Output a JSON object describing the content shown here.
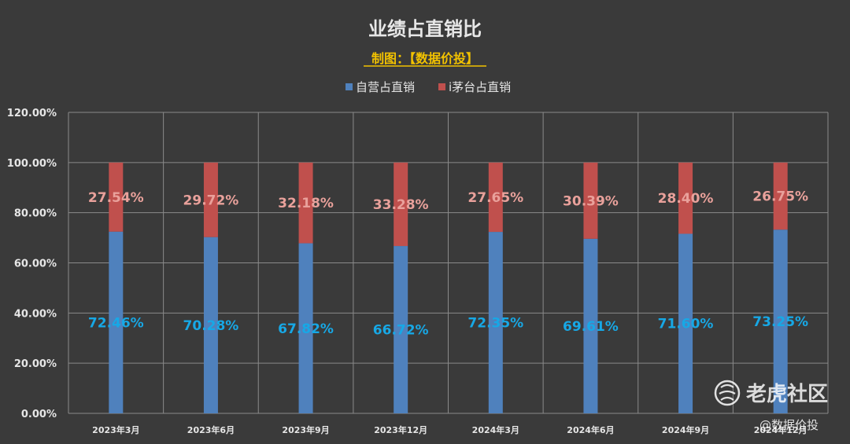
{
  "chart_data": {
    "type": "bar",
    "stacked": true,
    "title": "业绩占直销比",
    "subtitle": "制图：【数据价投】",
    "categories": [
      "2023年3月",
      "2023年6月",
      "2023年9月",
      "2023年12月",
      "2024年3月",
      "2024年6月",
      "2024年9月",
      "2024年12月"
    ],
    "series": [
      {
        "name": "自营占直销",
        "color": "#4f81bd",
        "values": [
          72.46,
          70.28,
          67.82,
          66.72,
          72.35,
          69.61,
          71.6,
          73.25
        ],
        "labels": [
          "72.46%",
          "70.28%",
          "67.82%",
          "66.72%",
          "72.35%",
          "69.61%",
          "71.60%",
          "73.25%"
        ]
      },
      {
        "name": "i茅台占直销",
        "color": "#c0504d",
        "values": [
          27.54,
          29.72,
          32.18,
          33.28,
          27.65,
          30.39,
          28.4,
          26.75
        ],
        "labels": [
          "27.54%",
          "29.72%",
          "32.18%",
          "33.28%",
          "27.65%",
          "30.39%",
          "28.40%",
          "26.75%"
        ]
      }
    ],
    "yticks": [
      "0.00%",
      "20.00%",
      "40.00%",
      "60.00%",
      "80.00%",
      "100.00%",
      "120.00%"
    ],
    "ylim": [
      0,
      120
    ],
    "grid": true,
    "legend_position": "top"
  },
  "watermark": {
    "brand": "老虎社区",
    "handle": "@数据价投",
    "icon": "tiger-community-icon"
  }
}
